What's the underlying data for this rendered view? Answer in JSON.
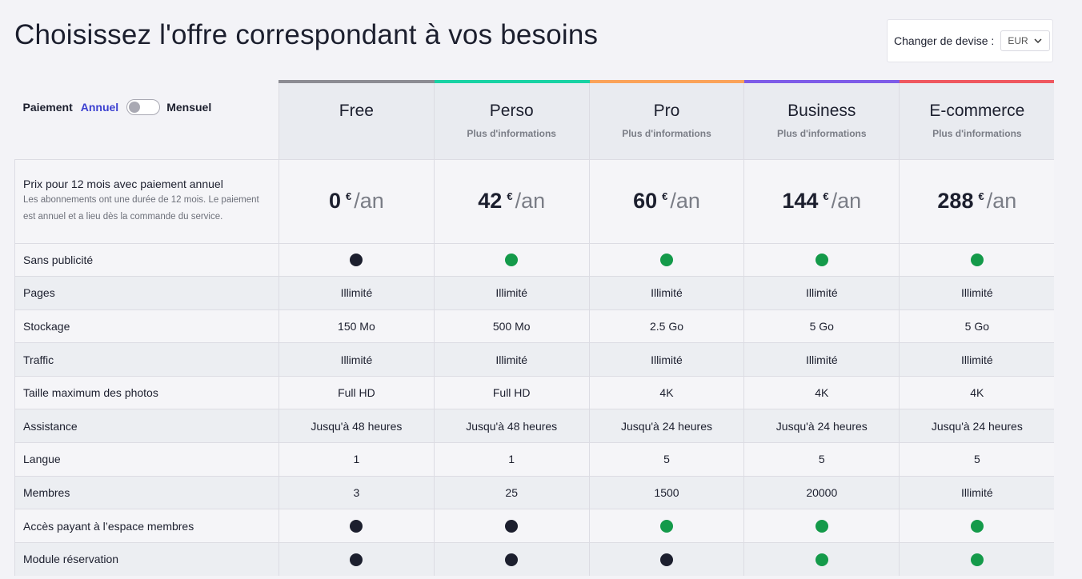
{
  "title": "Choisissez l'offre correspondant à vos besoins",
  "currency": {
    "label": "Changer de devise :",
    "value": "EUR",
    "icon": "chevron-down-icon"
  },
  "billing": {
    "label": "Paiement",
    "annual": "Annuel",
    "monthly": "Mensuel",
    "toggle_state": "off"
  },
  "plans": [
    {
      "name": "Free",
      "info": "",
      "accent": "#8c8c93",
      "price": "0",
      "currency": "€",
      "period": "/an"
    },
    {
      "name": "Perso",
      "info": "Plus d'informations",
      "accent": "#18d2a4",
      "price": "42",
      "currency": "€",
      "period": "/an"
    },
    {
      "name": "Pro",
      "info": "Plus d'informations",
      "accent": "#fba35a",
      "price": "60",
      "currency": "€",
      "period": "/an"
    },
    {
      "name": "Business",
      "info": "Plus d'informations",
      "accent": "#7e5ce8",
      "price": "144",
      "currency": "€",
      "period": "/an"
    },
    {
      "name": "E-commerce",
      "info": "Plus d'informations",
      "accent": "#ef5860",
      "price": "288",
      "currency": "€",
      "period": "/an"
    }
  ],
  "price_row": {
    "title": "Prix pour 12 mois avec paiement annuel",
    "description": "Les abonnements ont une durée de 12 mois. Le paiement est annuel et a lieu dès la commande du service."
  },
  "status_colors": {
    "yes": "#149a4a",
    "no": "#1c1f2e"
  },
  "features": [
    {
      "label": "Sans publicité",
      "values": [
        "no",
        "yes",
        "yes",
        "yes",
        "yes"
      ],
      "type": "dot"
    },
    {
      "label": "Pages",
      "values": [
        "Illimité",
        "Illimité",
        "Illimité",
        "Illimité",
        "Illimité"
      ],
      "type": "text"
    },
    {
      "label": "Stockage",
      "values": [
        "150 Mo",
        "500 Mo",
        "2.5 Go",
        "5 Go",
        "5 Go"
      ],
      "type": "text"
    },
    {
      "label": "Traffic",
      "values": [
        "Illimité",
        "Illimité",
        "Illimité",
        "Illimité",
        "Illimité"
      ],
      "type": "text"
    },
    {
      "label": "Taille maximum des photos",
      "values": [
        "Full HD",
        "Full HD",
        "4K",
        "4K",
        "4K"
      ],
      "type": "text"
    },
    {
      "label": "Assistance",
      "values": [
        "Jusqu'à 48 heures",
        "Jusqu'à 48 heures",
        "Jusqu'à 24 heures",
        "Jusqu'à 24 heures",
        "Jusqu'à 24 heures"
      ],
      "type": "text"
    },
    {
      "label": "Langue",
      "values": [
        "1",
        "1",
        "5",
        "5",
        "5"
      ],
      "type": "text"
    },
    {
      "label": "Membres",
      "values": [
        "3",
        "25",
        "1500",
        "20000",
        "Illimité"
      ],
      "type": "text"
    },
    {
      "label": "Accès payant à l’espace membres",
      "values": [
        "no",
        "no",
        "yes",
        "yes",
        "yes"
      ],
      "type": "dot"
    },
    {
      "label": "Module réservation",
      "values": [
        "no",
        "no",
        "no",
        "yes",
        "yes"
      ],
      "type": "dot"
    }
  ]
}
